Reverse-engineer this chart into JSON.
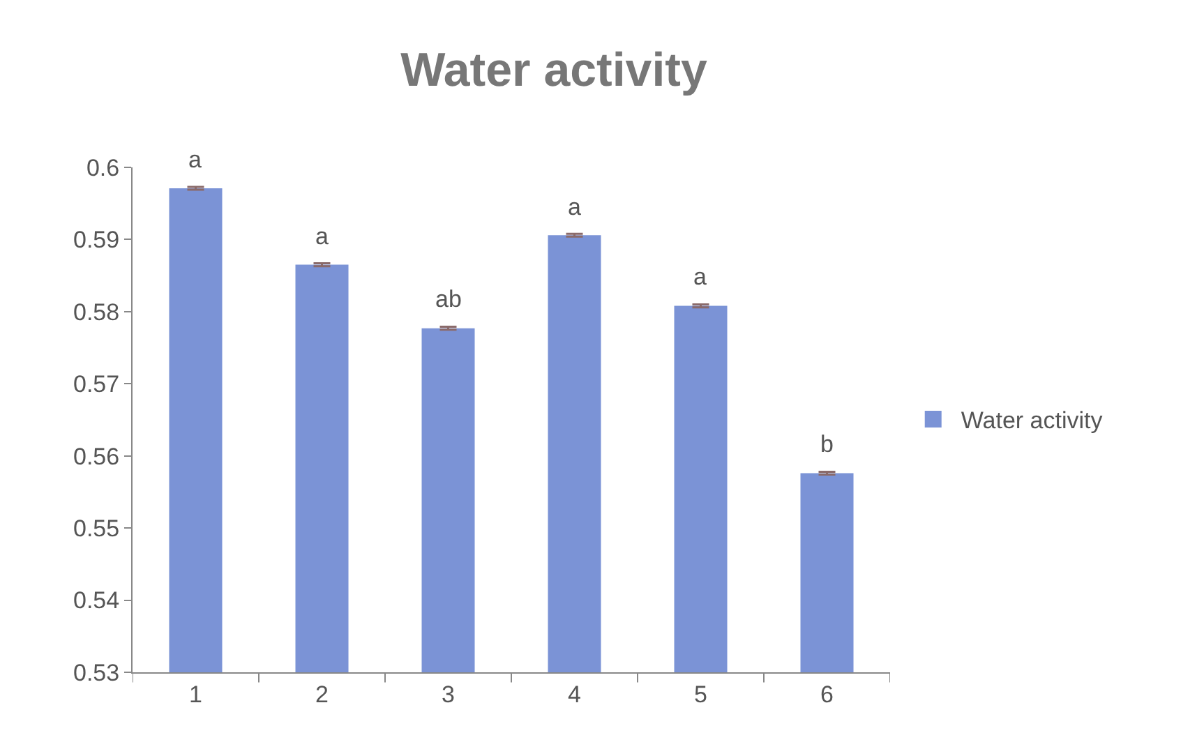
{
  "chart_data": {
    "type": "bar",
    "title": "Water activity",
    "categories": [
      "1",
      "2",
      "3",
      "4",
      "5",
      "6"
    ],
    "series": [
      {
        "name": "Water activity",
        "color": "#7b93d6",
        "values": [
          0.5971,
          0.5865,
          0.5777,
          0.5906,
          0.5808,
          0.5576
        ],
        "errors": [
          0.0002,
          0.0002,
          0.0002,
          0.0002,
          0.0002,
          0.0002
        ]
      }
    ],
    "ylim": [
      0.53,
      0.6
    ],
    "yticks": [
      0.53,
      0.54,
      0.55,
      0.56,
      0.57,
      0.58,
      0.59,
      0.6
    ],
    "grid": false,
    "legend": "right",
    "annotations": [
      {
        "text": "a",
        "x": "1",
        "y": 0.5973
      },
      {
        "text": "a",
        "x": "2",
        "y": 0.5867
      },
      {
        "text": "ab",
        "x": "3",
        "y": 0.5779
      },
      {
        "text": "a",
        "x": "4",
        "y": 0.5908
      },
      {
        "text": "a",
        "x": "5",
        "y": 0.581
      },
      {
        "text": "b",
        "x": "6",
        "y": 0.5578
      }
    ]
  }
}
